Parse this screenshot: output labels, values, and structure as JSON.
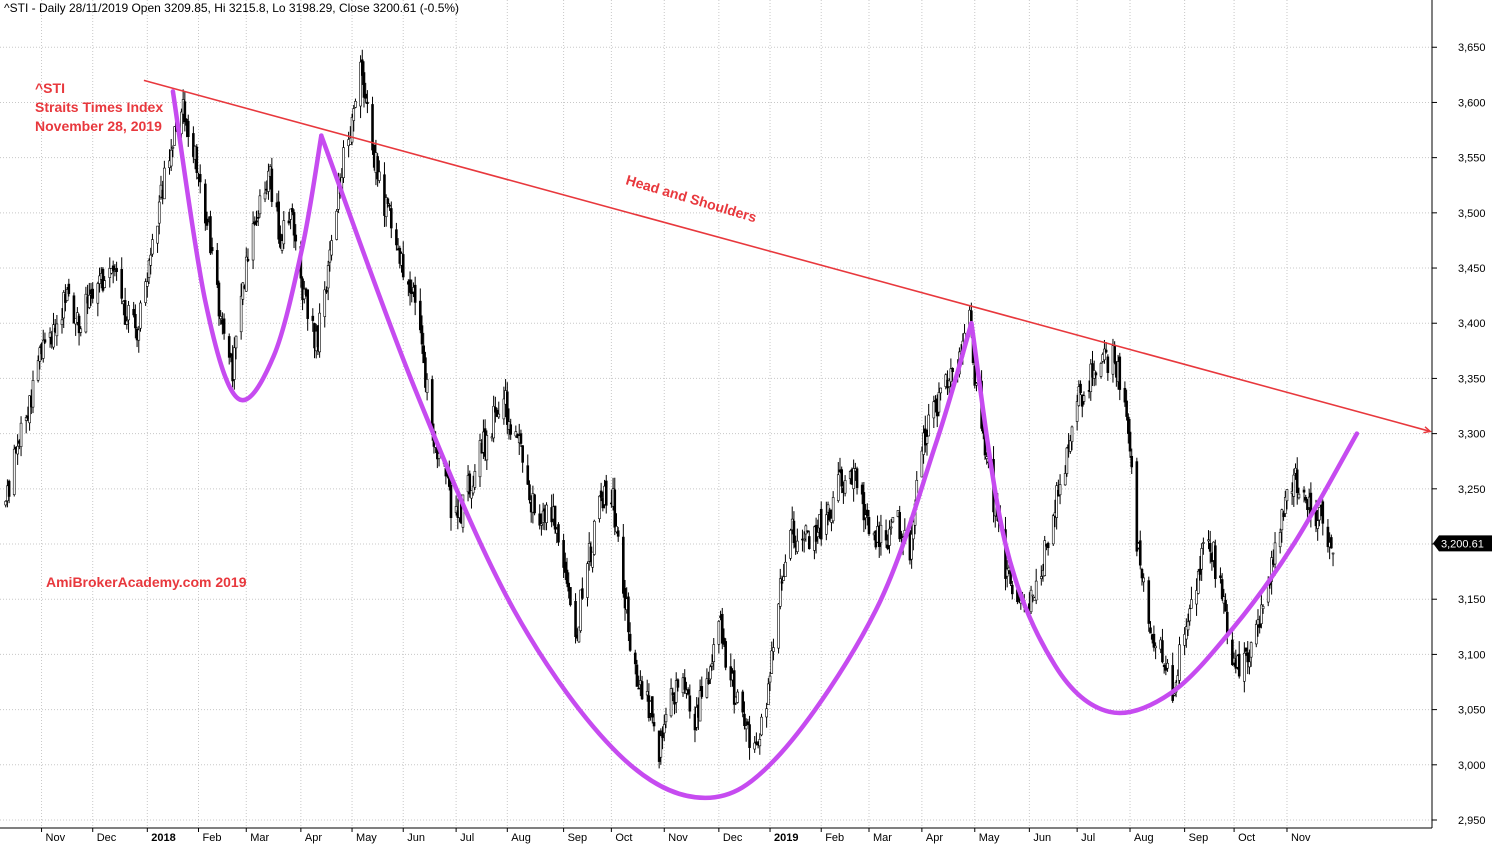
{
  "header": "^STI - Daily 28/11/2019 Open 3209.85, Hi 3215.8, Lo 3198.29, Close 3200.61 (-0.5%)",
  "colors": {
    "grid": "#c8c8c8",
    "candle": "#000000",
    "trendline": "#e8383d",
    "curve": "#c64bf0",
    "annotation": "#e8383d",
    "badge": "#000000"
  },
  "chart_data": {
    "type": "candlestick",
    "symbol": "^STI",
    "interval": "Daily",
    "ylim": [
      2940,
      3680
    ],
    "y_ticks": [
      2950,
      3000,
      3050,
      3100,
      3150,
      3200,
      3250,
      3300,
      3350,
      3400,
      3450,
      3500,
      3550,
      3600,
      3650
    ],
    "y_tick_labels": [
      "2,950",
      "3,000",
      "3,050",
      "3,100",
      "3,150",
      "3,200",
      "3,250",
      "3,300",
      "3,350",
      "3,400",
      "3,450",
      "3,500",
      "3,550",
      "3,600",
      "3,650"
    ],
    "x_ticks": [
      {
        "label": "Nov",
        "date": "2017-11-01",
        "bold": false
      },
      {
        "label": "Dec",
        "date": "2017-12-01",
        "bold": false
      },
      {
        "label": "2018",
        "date": "2018-01-02",
        "bold": true
      },
      {
        "label": "Feb",
        "date": "2018-02-01",
        "bold": false
      },
      {
        "label": "Mar",
        "date": "2018-03-01",
        "bold": false
      },
      {
        "label": "Apr",
        "date": "2018-04-02",
        "bold": false
      },
      {
        "label": "May",
        "date": "2018-05-02",
        "bold": false
      },
      {
        "label": "Jun",
        "date": "2018-06-01",
        "bold": false
      },
      {
        "label": "Jul",
        "date": "2018-07-02",
        "bold": false
      },
      {
        "label": "Aug",
        "date": "2018-08-01",
        "bold": false
      },
      {
        "label": "Sep",
        "date": "2018-09-03",
        "bold": false
      },
      {
        "label": "Oct",
        "date": "2018-10-01",
        "bold": false
      },
      {
        "label": "Nov",
        "date": "2018-11-01",
        "bold": false
      },
      {
        "label": "Dec",
        "date": "2018-12-03",
        "bold": false
      },
      {
        "label": "2019",
        "date": "2019-01-02",
        "bold": true
      },
      {
        "label": "Feb",
        "date": "2019-02-01",
        "bold": false
      },
      {
        "label": "Mar",
        "date": "2019-03-01",
        "bold": false
      },
      {
        "label": "Apr",
        "date": "2019-04-01",
        "bold": false
      },
      {
        "label": "May",
        "date": "2019-05-02",
        "bold": false
      },
      {
        "label": "Jun",
        "date": "2019-06-03",
        "bold": false
      },
      {
        "label": "Jul",
        "date": "2019-07-01",
        "bold": false
      },
      {
        "label": "Aug",
        "date": "2019-08-01",
        "bold": false
      },
      {
        "label": "Sep",
        "date": "2019-09-02",
        "bold": false
      },
      {
        "label": "Oct",
        "date": "2019-10-01",
        "bold": false
      },
      {
        "label": "Nov",
        "date": "2019-11-01",
        "bold": false
      }
    ],
    "x_range": [
      "2017-10-10",
      "2020-01-25"
    ],
    "close_path": [
      [
        "2017-10-11",
        3240
      ],
      [
        "2017-10-18",
        3290
      ],
      [
        "2017-10-25",
        3330
      ],
      [
        "2017-11-01",
        3370
      ],
      [
        "2017-11-08",
        3395
      ],
      [
        "2017-11-15",
        3420
      ],
      [
        "2017-11-22",
        3400
      ],
      [
        "2017-11-29",
        3425
      ],
      [
        "2017-12-06",
        3440
      ],
      [
        "2017-12-13",
        3450
      ],
      [
        "2017-12-20",
        3410
      ],
      [
        "2017-12-27",
        3390
      ],
      [
        "2018-01-03",
        3450
      ],
      [
        "2018-01-10",
        3520
      ],
      [
        "2018-01-17",
        3560
      ],
      [
        "2018-01-24",
        3595
      ],
      [
        "2018-01-31",
        3540
      ],
      [
        "2018-02-07",
        3480
      ],
      [
        "2018-02-14",
        3410
      ],
      [
        "2018-02-21",
        3360
      ],
      [
        "2018-02-28",
        3440
      ],
      [
        "2018-03-07",
        3500
      ],
      [
        "2018-03-14",
        3540
      ],
      [
        "2018-03-21",
        3480
      ],
      [
        "2018-03-28",
        3500
      ],
      [
        "2018-04-04",
        3420
      ],
      [
        "2018-04-11",
        3380
      ],
      [
        "2018-04-18",
        3450
      ],
      [
        "2018-04-25",
        3530
      ],
      [
        "2018-05-02",
        3590
      ],
      [
        "2018-05-07",
        3630
      ],
      [
        "2018-05-14",
        3560
      ],
      [
        "2018-05-21",
        3510
      ],
      [
        "2018-05-28",
        3470
      ],
      [
        "2018-06-04",
        3440
      ],
      [
        "2018-06-11",
        3390
      ],
      [
        "2018-06-18",
        3300
      ],
      [
        "2018-06-25",
        3260
      ],
      [
        "2018-07-02",
        3220
      ],
      [
        "2018-07-09",
        3250
      ],
      [
        "2018-07-16",
        3280
      ],
      [
        "2018-07-23",
        3310
      ],
      [
        "2018-07-30",
        3330
      ],
      [
        "2018-08-06",
        3300
      ],
      [
        "2018-08-13",
        3250
      ],
      [
        "2018-08-20",
        3220
      ],
      [
        "2018-08-27",
        3230
      ],
      [
        "2018-09-03",
        3170
      ],
      [
        "2018-09-10",
        3120
      ],
      [
        "2018-09-17",
        3180
      ],
      [
        "2018-09-24",
        3240
      ],
      [
        "2018-10-01",
        3250
      ],
      [
        "2018-10-08",
        3160
      ],
      [
        "2018-10-15",
        3080
      ],
      [
        "2018-10-22",
        3060
      ],
      [
        "2018-10-29",
        3010
      ],
      [
        "2018-11-05",
        3060
      ],
      [
        "2018-11-12",
        3080
      ],
      [
        "2018-11-19",
        3040
      ],
      [
        "2018-11-26",
        3080
      ],
      [
        "2018-12-03",
        3130
      ],
      [
        "2018-12-10",
        3080
      ],
      [
        "2018-12-17",
        3040
      ],
      [
        "2018-12-24",
        3020
      ],
      [
        "2018-12-31",
        3050
      ],
      [
        "2019-01-07",
        3150
      ],
      [
        "2019-01-14",
        3210
      ],
      [
        "2019-01-21",
        3200
      ],
      [
        "2019-01-28",
        3210
      ],
      [
        "2019-02-04",
        3220
      ],
      [
        "2019-02-11",
        3250
      ],
      [
        "2019-02-18",
        3270
      ],
      [
        "2019-02-25",
        3240
      ],
      [
        "2019-03-04",
        3210
      ],
      [
        "2019-03-11",
        3200
      ],
      [
        "2019-03-18",
        3220
      ],
      [
        "2019-03-25",
        3190
      ],
      [
        "2019-04-01",
        3290
      ],
      [
        "2019-04-08",
        3320
      ],
      [
        "2019-04-15",
        3350
      ],
      [
        "2019-04-22",
        3370
      ],
      [
        "2019-04-29",
        3400
      ],
      [
        "2019-05-06",
        3300
      ],
      [
        "2019-05-13",
        3240
      ],
      [
        "2019-05-20",
        3180
      ],
      [
        "2019-05-27",
        3150
      ],
      [
        "2019-06-03",
        3140
      ],
      [
        "2019-06-10",
        3180
      ],
      [
        "2019-06-17",
        3230
      ],
      [
        "2019-06-24",
        3270
      ],
      [
        "2019-07-01",
        3330
      ],
      [
        "2019-07-08",
        3350
      ],
      [
        "2019-07-15",
        3360
      ],
      [
        "2019-07-22",
        3370
      ],
      [
        "2019-07-29",
        3340
      ],
      [
        "2019-08-05",
        3200
      ],
      [
        "2019-08-12",
        3130
      ],
      [
        "2019-08-19",
        3100
      ],
      [
        "2019-08-26",
        3070
      ],
      [
        "2019-09-02",
        3120
      ],
      [
        "2019-09-09",
        3170
      ],
      [
        "2019-09-16",
        3210
      ],
      [
        "2019-09-23",
        3160
      ],
      [
        "2019-09-30",
        3100
      ],
      [
        "2019-10-07",
        3090
      ],
      [
        "2019-10-14",
        3120
      ],
      [
        "2019-10-21",
        3160
      ],
      [
        "2019-10-28",
        3220
      ],
      [
        "2019-11-04",
        3260
      ],
      [
        "2019-11-11",
        3250
      ],
      [
        "2019-11-18",
        3230
      ],
      [
        "2019-11-25",
        3210
      ],
      [
        "2019-11-28",
        3200.61
      ]
    ],
    "last_close": 3200.61,
    "last_close_label": "3,200.61",
    "trendline": {
      "start": [
        "2017-12-31",
        3620
      ],
      "end": [
        "2020-01-24",
        3302
      ]
    },
    "cup_curves": [
      [
        [
          "2018-01-17",
          3610
        ],
        [
          "2018-02-05",
          3420
        ],
        [
          "2018-02-24",
          3332
        ],
        [
          "2018-03-17",
          3370
        ],
        [
          "2018-04-03",
          3470
        ],
        [
          "2018-04-14",
          3570
        ]
      ],
      [
        [
          "2018-04-14",
          3570
        ],
        [
          "2018-06-08",
          3340
        ],
        [
          "2018-08-05",
          3140
        ],
        [
          "2018-10-05",
          3010
        ],
        [
          "2018-11-25",
          2970
        ],
        [
          "2019-01-08",
          3010
        ],
        [
          "2019-03-05",
          3140
        ],
        [
          "2019-04-09",
          3290
        ],
        [
          "2019-04-30",
          3400
        ]
      ],
      [
        [
          "2019-04-30",
          3400
        ],
        [
          "2019-05-20",
          3200
        ],
        [
          "2019-06-18",
          3090
        ],
        [
          "2019-07-20",
          3048
        ],
        [
          "2019-08-25",
          3065
        ],
        [
          "2019-10-01",
          3125
        ],
        [
          "2019-11-05",
          3200
        ],
        [
          "2019-12-12",
          3300
        ]
      ]
    ],
    "annotations": {
      "symbol": "^STI",
      "index_name": "Straits Times Index",
      "date_label": "November 28, 2019",
      "pattern_label": "Head and Shoulders",
      "watermark": "AmiBrokerAcademy.com  2019"
    }
  }
}
